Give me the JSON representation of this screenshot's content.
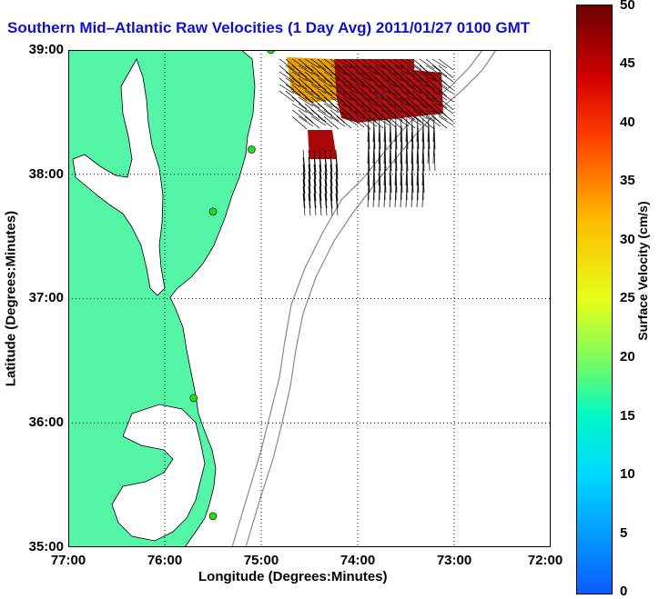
{
  "title": "Southern Mid–Atlantic Raw Velocities (1 Day Avg) 2011/01/27 0100 GMT",
  "map": {
    "xlabel": "Longitude (Degrees:Minutes)",
    "ylabel": "Latitude (Degrees:Minutes)",
    "lat_ticks": [
      "39:00",
      "38:00",
      "37:00",
      "36:00",
      "35:00"
    ],
    "lon_ticks": [
      "77:00",
      "76:00",
      "75:00",
      "74:00",
      "73:00",
      "72:00"
    ],
    "extent": {
      "lon_west": -77.0,
      "lon_east": -72.0,
      "lat_south": 35.0,
      "lat_north": 39.0
    },
    "grid": "dotted",
    "land_color": "#55f5a8",
    "station_color": "#22dd22",
    "stations": [
      {
        "lon": -74.9,
        "lat": 39.0
      },
      {
        "lon": -75.1,
        "lat": 38.2
      },
      {
        "lon": -75.5,
        "lat": 37.7
      },
      {
        "lon": -75.7,
        "lat": 36.2
      },
      {
        "lon": -75.5,
        "lat": 35.25
      }
    ]
  },
  "colorbar": {
    "label": "Surface Velocity (cm/s)",
    "ticks": [
      "50",
      "45",
      "40",
      "35",
      "30",
      "25",
      "20",
      "15",
      "10",
      "5",
      "0"
    ],
    "min": 0,
    "max": 50
  }
}
